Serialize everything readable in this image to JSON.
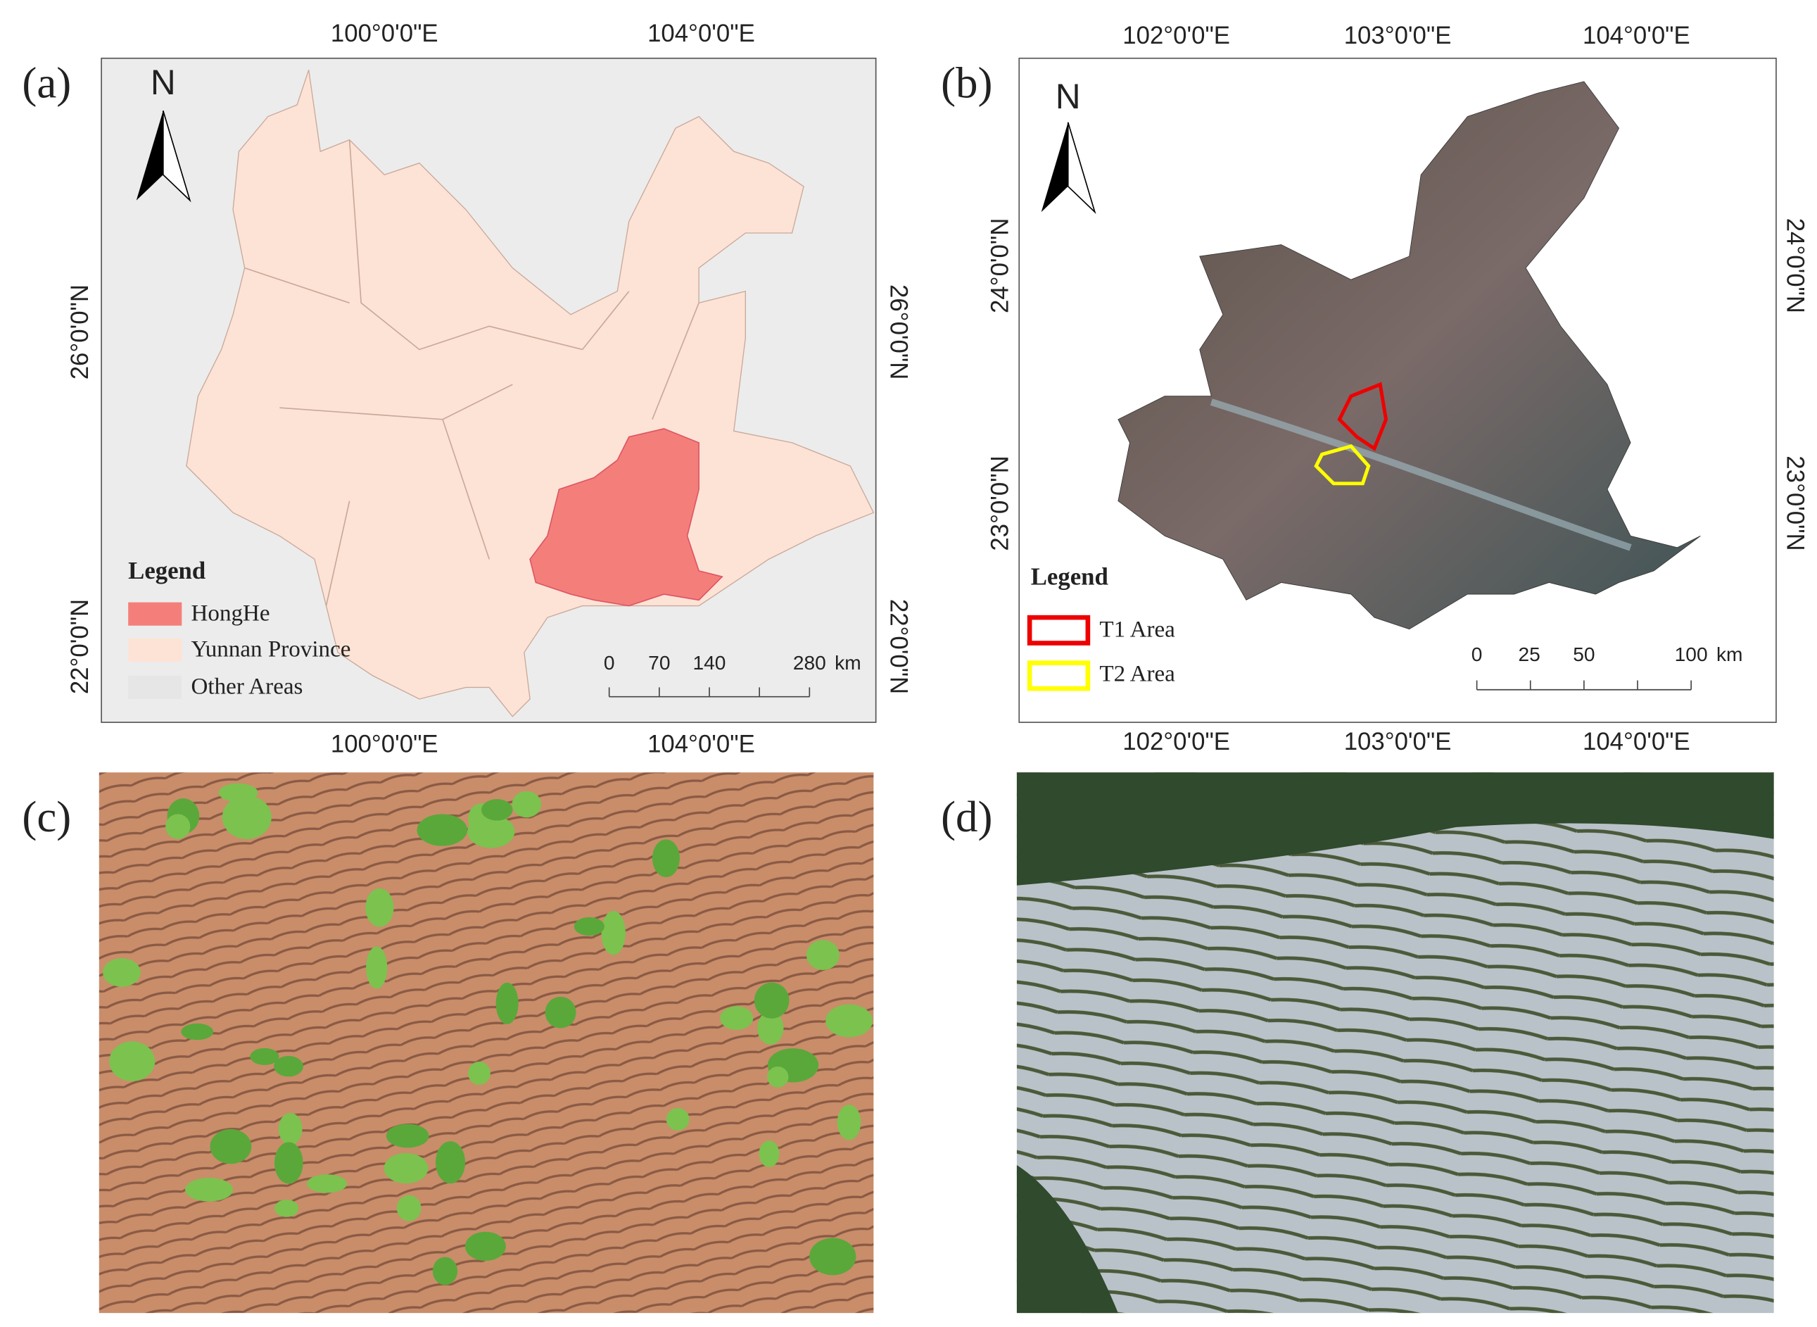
{
  "panel_a": {
    "label": "(a)",
    "north": "N",
    "top_lon_labels": [
      "100°0'0\"E",
      "104°0'0\"E"
    ],
    "bottom_lon_labels": [
      "100°0'0\"E",
      "104°0'0\"E"
    ],
    "left_lat_labels": [
      "26°0'0\"N",
      "22°0'0\"N"
    ],
    "right_lat_labels": [
      "26°0'0\"N",
      "22°0'0\"N"
    ],
    "legend": {
      "title": "Legend",
      "items": [
        "HongHe",
        "Yunnan Province",
        "Other Areas"
      ]
    },
    "scale": {
      "ticks": [
        0,
        70,
        140,
        280
      ],
      "unit": "km"
    }
  },
  "panel_b": {
    "label": "(b)",
    "north": "N",
    "top_lon_labels": [
      "102°0'0\"E",
      "103°0'0\"E",
      "104°0'0\"E"
    ],
    "bottom_lon_labels": [
      "102°0'0\"E",
      "103°0'0\"E",
      "104°0'0\"E"
    ],
    "left_lat_labels": [
      "24°0'0\"N",
      "23°0'0\"N"
    ],
    "right_lat_labels": [
      "24°0'0\"N",
      "23°0'0\"N"
    ],
    "legend": {
      "title": "Legend",
      "items": [
        "T1 Area",
        "T2 Area"
      ]
    },
    "scale": {
      "ticks": [
        0,
        25,
        50,
        100
      ],
      "unit": "km"
    }
  },
  "panel_c": {
    "label": "(c)"
  },
  "panel_d": {
    "label": "(d)"
  }
}
